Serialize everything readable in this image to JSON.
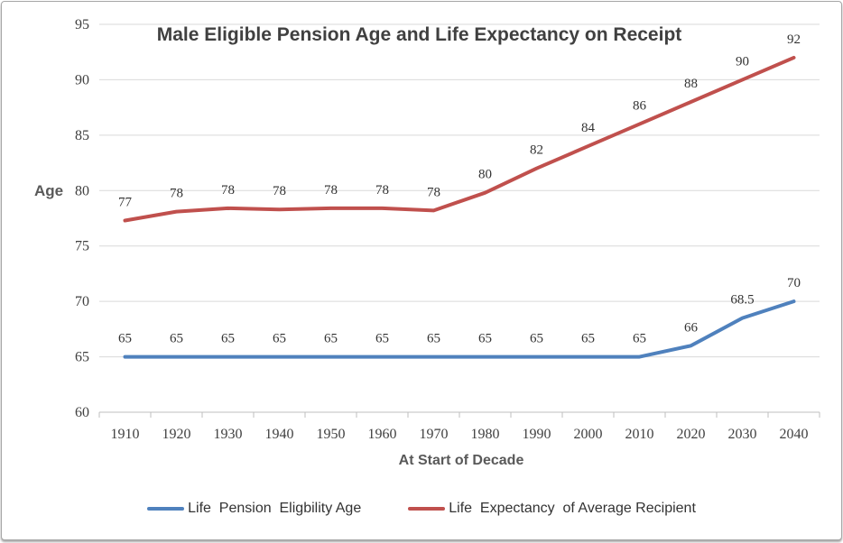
{
  "chart_data": {
    "type": "line",
    "title": "Male Eligible Pension Age and Life Expectancy on Receipt",
    "xlabel": "At Start of Decade",
    "ylabel": "Age",
    "ylim": [
      60,
      95
    ],
    "ytick_step": 5,
    "grid": true,
    "legend_position": "bottom",
    "categories": [
      "1910",
      "1920",
      "1930",
      "1940",
      "1950",
      "1960",
      "1970",
      "1980",
      "1990",
      "2000",
      "2010",
      "2020",
      "2030",
      "2040"
    ],
    "series": [
      {
        "id": "pension-age",
        "name": "Life  Pension  Eligbility Age",
        "color": "#4F81BD",
        "values": [
          65,
          65,
          65,
          65,
          65,
          65,
          65,
          65,
          65,
          65,
          65,
          66,
          68.5,
          70
        ],
        "point_labels": [
          "65",
          "65",
          "65",
          "65",
          "65",
          "65",
          "65",
          "65",
          "65",
          "65",
          "65",
          "66",
          "68.5",
          "70"
        ]
      },
      {
        "id": "life-expectancy",
        "name": "Life  Expectancy  of Average Recipient",
        "color": "#C0504D",
        "values": [
          77.3,
          78.1,
          78.4,
          78.3,
          78.4,
          78.4,
          78.2,
          79.8,
          82,
          84,
          86,
          88,
          90,
          92
        ],
        "point_labels": [
          "77",
          "78",
          "78",
          "78",
          "78",
          "78",
          "78",
          "80",
          "82",
          "84",
          "86",
          "88",
          "90",
          "92"
        ]
      }
    ],
    "colors": {
      "grid": "#D9D9D9",
      "axis": "#BFBFBF"
    }
  }
}
